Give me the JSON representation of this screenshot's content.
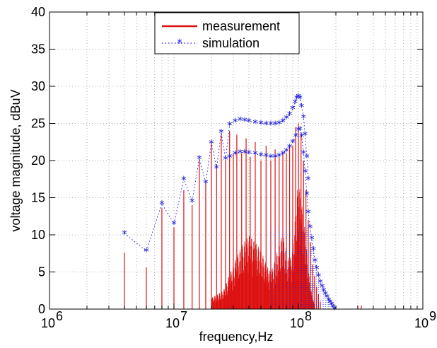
{
  "chart_data": {
    "type": "line",
    "title": "",
    "xlabel": "frequency,Hz",
    "ylabel": "voltage magnitude, dBuV",
    "xscale": "log",
    "xlim": [
      1000000,
      1000000000
    ],
    "ylim": [
      0,
      40
    ],
    "x_tick_labels": [
      {
        "base": "10",
        "exp": "6",
        "value": 1000000
      },
      {
        "base": "10",
        "exp": "7",
        "value": 10000000
      },
      {
        "base": "10",
        "exp": "8",
        "value": 100000000
      },
      {
        "base": "10",
        "exp": "9",
        "value": 1000000000
      }
    ],
    "y_ticks": [
      0,
      5,
      10,
      15,
      20,
      25,
      30,
      35,
      40
    ],
    "y_tick_labels": [
      "0",
      "5",
      "10",
      "15",
      "20",
      "25",
      "30",
      "35",
      "40"
    ],
    "grid": true,
    "legend_position": "top-center",
    "series": [
      {
        "name": "measurement",
        "color": "#dd1111",
        "style": "solid line",
        "points": [
          [
            4000000,
            7.6
          ],
          [
            6000000,
            5.6
          ],
          [
            8000000,
            13.6
          ],
          [
            10000000,
            11.0
          ],
          [
            12000000,
            16.0
          ],
          [
            14000000,
            14.0
          ],
          [
            16000000,
            20.0
          ],
          [
            18000000,
            17.0
          ],
          [
            20000000,
            22.5
          ],
          [
            22000000,
            19.5
          ],
          [
            24000000,
            23.5
          ],
          [
            26000000,
            20.0
          ],
          [
            28000000,
            24.0
          ],
          [
            30000000,
            21.0
          ],
          [
            32000000,
            23.5
          ],
          [
            35000000,
            21.0
          ],
          [
            38000000,
            23.0
          ],
          [
            41000000,
            20.5
          ],
          [
            45000000,
            22.5
          ],
          [
            50000000,
            20.0
          ],
          [
            55000000,
            22.0
          ],
          [
            60000000,
            20.0
          ],
          [
            65000000,
            21.5
          ],
          [
            70000000,
            20.5
          ],
          [
            75000000,
            21.0
          ],
          [
            80000000,
            21.0
          ],
          [
            85000000,
            22.0
          ],
          [
            90000000,
            22.0
          ],
          [
            95000000,
            24.5
          ],
          [
            100000000,
            25.0
          ],
          [
            105000000,
            23.5
          ],
          [
            110000000,
            20.0
          ],
          [
            115000000,
            16.0
          ],
          [
            120000000,
            12.0
          ],
          [
            125000000,
            9.0
          ],
          [
            130000000,
            6.0
          ],
          [
            135000000,
            4.5
          ],
          [
            140000000,
            3.0
          ],
          [
            145000000,
            2.0
          ],
          [
            150000000,
            1.0
          ],
          [
            300000000,
            0.5
          ],
          [
            320000000,
            0.5
          ]
        ],
        "envelope": [
          [
            20000000,
            1.5
          ],
          [
            25000000,
            2.5
          ],
          [
            30000000,
            6.0
          ],
          [
            35000000,
            8.5
          ],
          [
            40000000,
            10.0
          ],
          [
            45000000,
            9.0
          ],
          [
            50000000,
            8.0
          ],
          [
            55000000,
            6.0
          ],
          [
            60000000,
            5.0
          ],
          [
            65000000,
            6.5
          ],
          [
            70000000,
            9.0
          ],
          [
            75000000,
            10.0
          ],
          [
            80000000,
            8.0
          ],
          [
            85000000,
            6.0
          ],
          [
            90000000,
            9.0
          ],
          [
            95000000,
            13.0
          ],
          [
            100000000,
            17.5
          ],
          [
            105000000,
            15.0
          ],
          [
            110000000,
            12.0
          ],
          [
            115000000,
            9.0
          ],
          [
            120000000,
            5.5
          ],
          [
            125000000,
            3.0
          ],
          [
            130000000,
            1.5
          ],
          [
            135000000,
            0.5
          ]
        ]
      },
      {
        "name": "simulation",
        "color": "#1a1ad6",
        "style": "dotted line with star markers",
        "upper": [
          [
            4000000,
            10.2
          ],
          [
            6000000,
            7.8
          ],
          [
            8000000,
            14.2
          ],
          [
            10000000,
            11.5
          ],
          [
            12000000,
            17.5
          ],
          [
            14000000,
            14.5
          ],
          [
            16000000,
            20.3
          ],
          [
            18000000,
            17.0
          ],
          [
            20000000,
            22.4
          ],
          [
            22000000,
            19.0
          ],
          [
            24000000,
            23.8
          ],
          [
            26000000,
            20.2
          ],
          [
            28000000,
            24.8
          ],
          [
            31000000,
            25.3
          ],
          [
            34000000,
            25.5
          ],
          [
            37000000,
            25.4
          ],
          [
            40000000,
            25.3
          ],
          [
            45000000,
            25.1
          ],
          [
            50000000,
            25.0
          ],
          [
            55000000,
            24.9
          ],
          [
            60000000,
            24.9
          ],
          [
            65000000,
            24.9
          ],
          [
            70000000,
            25.0
          ],
          [
            75000000,
            25.3
          ],
          [
            80000000,
            25.7
          ],
          [
            85000000,
            26.2
          ],
          [
            90000000,
            27.0
          ],
          [
            94000000,
            27.8
          ],
          [
            97000000,
            28.4
          ],
          [
            100000000,
            28.6
          ],
          [
            103000000,
            28.4
          ],
          [
            106000000,
            27.3
          ],
          [
            110000000,
            25.8
          ],
          [
            113000000,
            23.5
          ],
          [
            117000000,
            20.5
          ],
          [
            120000000,
            17.5
          ]
        ],
        "lower": [
          [
            28000000,
            20.5
          ],
          [
            31000000,
            20.9
          ],
          [
            34000000,
            21.1
          ],
          [
            37000000,
            21.1
          ],
          [
            40000000,
            21.0
          ],
          [
            45000000,
            20.9
          ],
          [
            50000000,
            20.7
          ],
          [
            55000000,
            20.6
          ],
          [
            60000000,
            20.5
          ],
          [
            65000000,
            20.5
          ],
          [
            70000000,
            20.6
          ],
          [
            75000000,
            20.9
          ],
          [
            80000000,
            21.3
          ],
          [
            85000000,
            21.8
          ],
          [
            90000000,
            22.5
          ],
          [
            95000000,
            23.3
          ],
          [
            100000000,
            24.1
          ],
          [
            103000000,
            24.2
          ],
          [
            106000000,
            23.3
          ],
          [
            110000000,
            21.0
          ],
          [
            113000000,
            18.5
          ],
          [
            117000000,
            15.5
          ],
          [
            120000000,
            13.0
          ],
          [
            124000000,
            11.0
          ],
          [
            128000000,
            9.5
          ],
          [
            132000000,
            8.0
          ],
          [
            136000000,
            6.5
          ],
          [
            140000000,
            5.5
          ],
          [
            145000000,
            4.5
          ],
          [
            150000000,
            3.6
          ],
          [
            155000000,
            3.0
          ],
          [
            160000000,
            2.5
          ],
          [
            165000000,
            2.0
          ],
          [
            170000000,
            1.6
          ],
          [
            175000000,
            1.2
          ],
          [
            180000000,
            0.9
          ],
          [
            185000000,
            0.6
          ],
          [
            190000000,
            0.3
          ],
          [
            195000000,
            0.0
          ]
        ]
      }
    ]
  }
}
